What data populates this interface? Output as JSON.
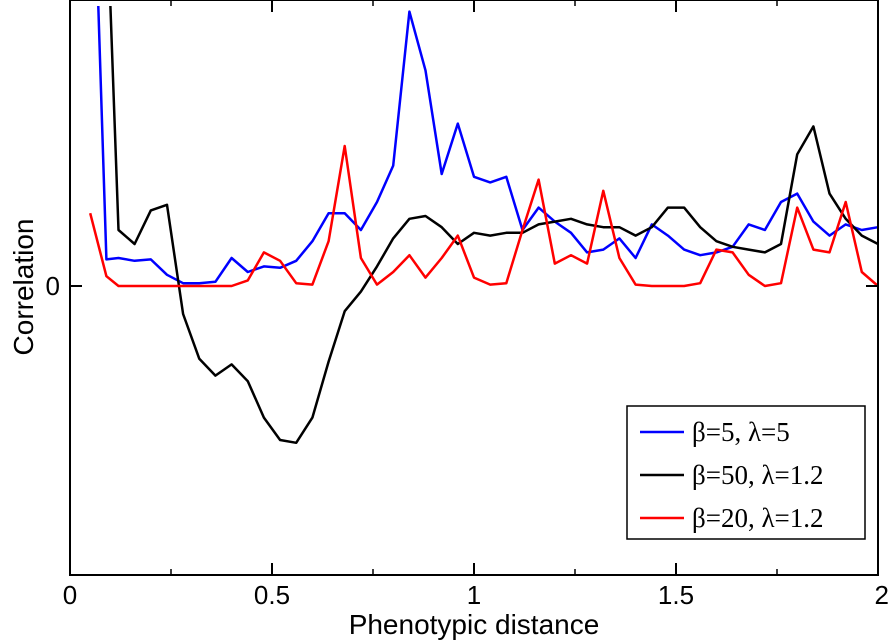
{
  "chart_data": {
    "type": "line",
    "title": "",
    "xlabel": "Phenotypic distance",
    "ylabel": "Correlation",
    "xlim": [
      0,
      2
    ],
    "ylim": [
      -1.0,
      1.0
    ],
    "x_ticks": [
      {
        "value": 0,
        "label": "0"
      },
      {
        "value": 0.5,
        "label": "0.5"
      },
      {
        "value": 1,
        "label": "1"
      },
      {
        "value": 1.5,
        "label": "1.5"
      },
      {
        "value": 2,
        "label": "2"
      }
    ],
    "y_ticks": [
      {
        "value": 0,
        "label": "0"
      }
    ],
    "grid": false,
    "legend_position": "bottom-right",
    "series": [
      {
        "name": "β=5, λ=5",
        "color": "#0000ff",
        "x": [
          0.07,
          0.09,
          0.12,
          0.16,
          0.2,
          0.24,
          0.28,
          0.32,
          0.36,
          0.4,
          0.44,
          0.48,
          0.52,
          0.56,
          0.6,
          0.64,
          0.68,
          0.72,
          0.76,
          0.8,
          0.84,
          0.88,
          0.92,
          0.96,
          1.0,
          1.04,
          1.08,
          1.12,
          1.16,
          1.2,
          1.24,
          1.28,
          1.32,
          1.36,
          1.4,
          1.44,
          1.48,
          1.52,
          1.56,
          1.6,
          1.64,
          1.68,
          1.72,
          1.76,
          1.8,
          1.84,
          1.88,
          1.92,
          1.96,
          2.0
        ],
        "y": [
          1.0,
          0.095,
          0.1,
          0.09,
          0.095,
          0.04,
          0.01,
          0.01,
          0.015,
          0.1,
          0.05,
          0.07,
          0.065,
          0.09,
          0.16,
          0.26,
          0.26,
          0.2,
          0.3,
          0.43,
          0.98,
          0.77,
          0.4,
          0.58,
          0.39,
          0.37,
          0.39,
          0.2,
          0.28,
          0.23,
          0.19,
          0.12,
          0.13,
          0.17,
          0.1,
          0.22,
          0.18,
          0.13,
          0.11,
          0.12,
          0.14,
          0.22,
          0.2,
          0.3,
          0.33,
          0.23,
          0.18,
          0.22,
          0.2,
          0.21
        ]
      },
      {
        "name": "β=50, λ=1.2",
        "color": "#000000",
        "x": [
          0.1,
          0.12,
          0.16,
          0.2,
          0.24,
          0.28,
          0.32,
          0.36,
          0.4,
          0.44,
          0.48,
          0.52,
          0.56,
          0.6,
          0.64,
          0.68,
          0.72,
          0.76,
          0.8,
          0.84,
          0.88,
          0.92,
          0.96,
          1.0,
          1.04,
          1.08,
          1.12,
          1.16,
          1.2,
          1.24,
          1.28,
          1.32,
          1.36,
          1.4,
          1.44,
          1.48,
          1.52,
          1.56,
          1.6,
          1.64,
          1.68,
          1.72,
          1.76,
          1.8,
          1.84,
          1.88,
          1.92,
          1.96,
          2.0
        ],
        "y": [
          1.0,
          0.2,
          0.15,
          0.27,
          0.29,
          -0.1,
          -0.26,
          -0.32,
          -0.28,
          -0.34,
          -0.47,
          -0.55,
          -0.56,
          -0.47,
          -0.27,
          -0.09,
          -0.02,
          0.07,
          0.17,
          0.24,
          0.25,
          0.21,
          0.15,
          0.19,
          0.18,
          0.19,
          0.19,
          0.22,
          0.23,
          0.24,
          0.22,
          0.21,
          0.21,
          0.18,
          0.21,
          0.28,
          0.28,
          0.21,
          0.16,
          0.14,
          0.13,
          0.12,
          0.15,
          0.47,
          0.57,
          0.33,
          0.24,
          0.18,
          0.15
        ]
      },
      {
        "name": "β=20, λ=1.2",
        "color": "#ff0000",
        "x": [
          0.05,
          0.09,
          0.12,
          0.16,
          0.2,
          0.24,
          0.28,
          0.32,
          0.36,
          0.4,
          0.44,
          0.48,
          0.52,
          0.56,
          0.6,
          0.64,
          0.68,
          0.72,
          0.76,
          0.8,
          0.84,
          0.88,
          0.92,
          0.96,
          1.0,
          1.04,
          1.08,
          1.12,
          1.16,
          1.2,
          1.24,
          1.28,
          1.32,
          1.36,
          1.4,
          1.44,
          1.48,
          1.52,
          1.56,
          1.6,
          1.64,
          1.68,
          1.72,
          1.76,
          1.8,
          1.84,
          1.88,
          1.92,
          1.96,
          2.0
        ],
        "y": [
          0.26,
          0.035,
          0.0,
          0.0,
          0.0,
          0.0,
          0.0,
          0.0,
          0.0,
          0.0,
          0.02,
          0.12,
          0.09,
          0.01,
          0.005,
          0.16,
          0.5,
          0.1,
          0.005,
          0.05,
          0.11,
          0.03,
          0.1,
          0.18,
          0.03,
          0.005,
          0.01,
          0.2,
          0.38,
          0.08,
          0.11,
          0.08,
          0.34,
          0.1,
          0.005,
          0.0,
          0.0,
          0.0,
          0.01,
          0.13,
          0.12,
          0.04,
          0.0,
          0.01,
          0.28,
          0.13,
          0.12,
          0.3,
          0.05,
          0.0
        ]
      }
    ]
  }
}
